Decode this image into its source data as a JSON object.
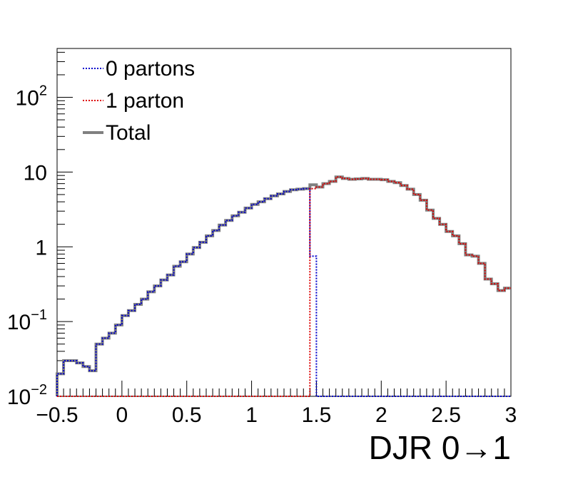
{
  "chart_data": {
    "type": "line",
    "style": "step-histogram",
    "xlabel": "DJR 0→1",
    "ylabel": "",
    "xlim": [
      -0.5,
      3.0
    ],
    "ylim": [
      0.01,
      450
    ],
    "yscale": "log",
    "grid": false,
    "legend_position": "top-left",
    "x_tick_labels": [
      "−0.5",
      "0",
      "0.5",
      "1",
      "1.5",
      "2",
      "2.5",
      "3"
    ],
    "y_tick_labels": [
      {
        "value": 0.01,
        "base": "10",
        "exp": "−2"
      },
      {
        "value": 0.1,
        "base": "10",
        "exp": "−1"
      },
      {
        "value": 1,
        "base": "1",
        "exp": ""
      },
      {
        "value": 10,
        "base": "10",
        "exp": ""
      },
      {
        "value": 100,
        "base": "10",
        "exp": "2"
      }
    ],
    "legend": [
      {
        "label": "0 partons",
        "color": "#0000cc",
        "style": "dotted"
      },
      {
        "label": "1 parton",
        "color": "#dd0000",
        "style": "dotted"
      },
      {
        "label": "Total",
        "color": "#808080",
        "style": "solid"
      }
    ],
    "bin_edges": [
      -0.5,
      -0.45,
      -0.4,
      -0.35,
      -0.3,
      -0.25,
      -0.2,
      -0.15,
      -0.1,
      -0.05,
      0.0,
      0.05,
      0.1,
      0.15,
      0.2,
      0.25,
      0.3,
      0.35,
      0.4,
      0.45,
      0.5,
      0.55,
      0.6,
      0.65,
      0.7,
      0.75,
      0.8,
      0.85,
      0.9,
      0.95,
      1.0,
      1.05,
      1.1,
      1.15,
      1.2,
      1.25,
      1.3,
      1.35,
      1.4,
      1.45,
      1.5,
      1.55,
      1.6,
      1.65,
      1.7,
      1.75,
      1.8,
      1.85,
      1.9,
      1.95,
      2.0,
      2.05,
      2.1,
      2.15,
      2.2,
      2.25,
      2.3,
      2.35,
      2.4,
      2.45,
      2.5,
      2.55,
      2.6,
      2.65,
      2.7,
      2.75,
      2.8,
      2.85,
      2.9,
      2.95,
      3.0
    ],
    "series": [
      {
        "name": "0 partons",
        "color": "#0000cc",
        "values": [
          0.02,
          0.03,
          0.03,
          0.028,
          0.025,
          0.022,
          0.05,
          0.06,
          0.07,
          0.09,
          0.12,
          0.14,
          0.17,
          0.2,
          0.25,
          0.3,
          0.36,
          0.42,
          0.55,
          0.63,
          0.8,
          0.98,
          1.15,
          1.4,
          1.65,
          1.95,
          2.25,
          2.6,
          2.9,
          3.3,
          3.7,
          4.0,
          4.4,
          4.8,
          5.1,
          5.5,
          5.8,
          5.9,
          6.0,
          0.75,
          0,
          0,
          0,
          0,
          0,
          0,
          0,
          0,
          0,
          0,
          0,
          0,
          0,
          0,
          0,
          0,
          0,
          0,
          0,
          0,
          0,
          0,
          0,
          0,
          0,
          0,
          0,
          0,
          0,
          0
        ]
      },
      {
        "name": "1 parton",
        "color": "#dd0000",
        "values": [
          0,
          0,
          0,
          0,
          0,
          0,
          0,
          0,
          0,
          0,
          0,
          0,
          0,
          0,
          0,
          0,
          0,
          0,
          0,
          0,
          0,
          0,
          0,
          0,
          0,
          0,
          0,
          0,
          0,
          0,
          0,
          0,
          0,
          0,
          0,
          0,
          0,
          0,
          0,
          6.0,
          6.3,
          7.0,
          7.5,
          8.6,
          8.2,
          8.0,
          8.1,
          8.2,
          8.0,
          8.0,
          7.9,
          7.5,
          7.2,
          6.6,
          5.9,
          5.0,
          4.2,
          3.1,
          2.4,
          2.0,
          1.6,
          1.4,
          1.1,
          0.78,
          0.75,
          0.6,
          0.37,
          0.32,
          0.26,
          0.28
        ]
      },
      {
        "name": "Total",
        "color": "#808080",
        "values": [
          0.02,
          0.03,
          0.03,
          0.028,
          0.025,
          0.022,
          0.05,
          0.06,
          0.07,
          0.09,
          0.12,
          0.14,
          0.17,
          0.2,
          0.25,
          0.3,
          0.36,
          0.42,
          0.55,
          0.63,
          0.8,
          0.98,
          1.15,
          1.4,
          1.65,
          1.95,
          2.25,
          2.6,
          2.9,
          3.3,
          3.7,
          4.0,
          4.4,
          4.8,
          5.1,
          5.5,
          5.8,
          5.9,
          6.0,
          6.75,
          6.3,
          7.0,
          7.5,
          8.6,
          8.2,
          8.0,
          8.1,
          8.2,
          8.0,
          8.0,
          7.9,
          7.5,
          7.2,
          6.6,
          5.9,
          5.0,
          4.2,
          3.1,
          2.4,
          2.0,
          1.6,
          1.4,
          1.1,
          0.78,
          0.75,
          0.6,
          0.37,
          0.32,
          0.26,
          0.28
        ]
      }
    ]
  }
}
